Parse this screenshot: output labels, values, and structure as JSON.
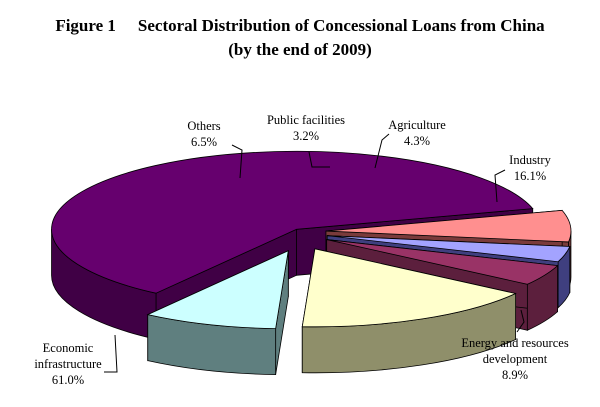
{
  "figure_label": "Figure 1",
  "title_line1": "Sectoral Distribution of Concessional Loans from China",
  "title_line2": "(by the end of 2009)",
  "chart_data": {
    "type": "pie",
    "style": "3d-exploded",
    "slices": [
      {
        "label": "Economic infrastructure",
        "value": 61.0,
        "value_label": "61.0%",
        "color": "#66006e",
        "side_color": "#400045"
      },
      {
        "label": "Others",
        "value": 6.5,
        "value_label": "6.5%",
        "color": "#ff8f8f",
        "side_color": "#7a3b3b"
      },
      {
        "label": "Public facilities",
        "value": 3.2,
        "value_label": "3.2%",
        "color": "#a3a3ff",
        "side_color": "#3f3f7f"
      },
      {
        "label": "Agriculture",
        "value": 4.3,
        "value_label": "4.3%",
        "color": "#993366",
        "side_color": "#5c1f3d"
      },
      {
        "label": "Industry",
        "value": 16.1,
        "value_label": "16.1%",
        "color": "#ffffcc",
        "side_color": "#8f8f6a"
      },
      {
        "label": "Energy and resources development",
        "value": 8.9,
        "value_label": "8.9%",
        "color": "#ccffff",
        "side_color": "#5f7f7f"
      }
    ]
  }
}
